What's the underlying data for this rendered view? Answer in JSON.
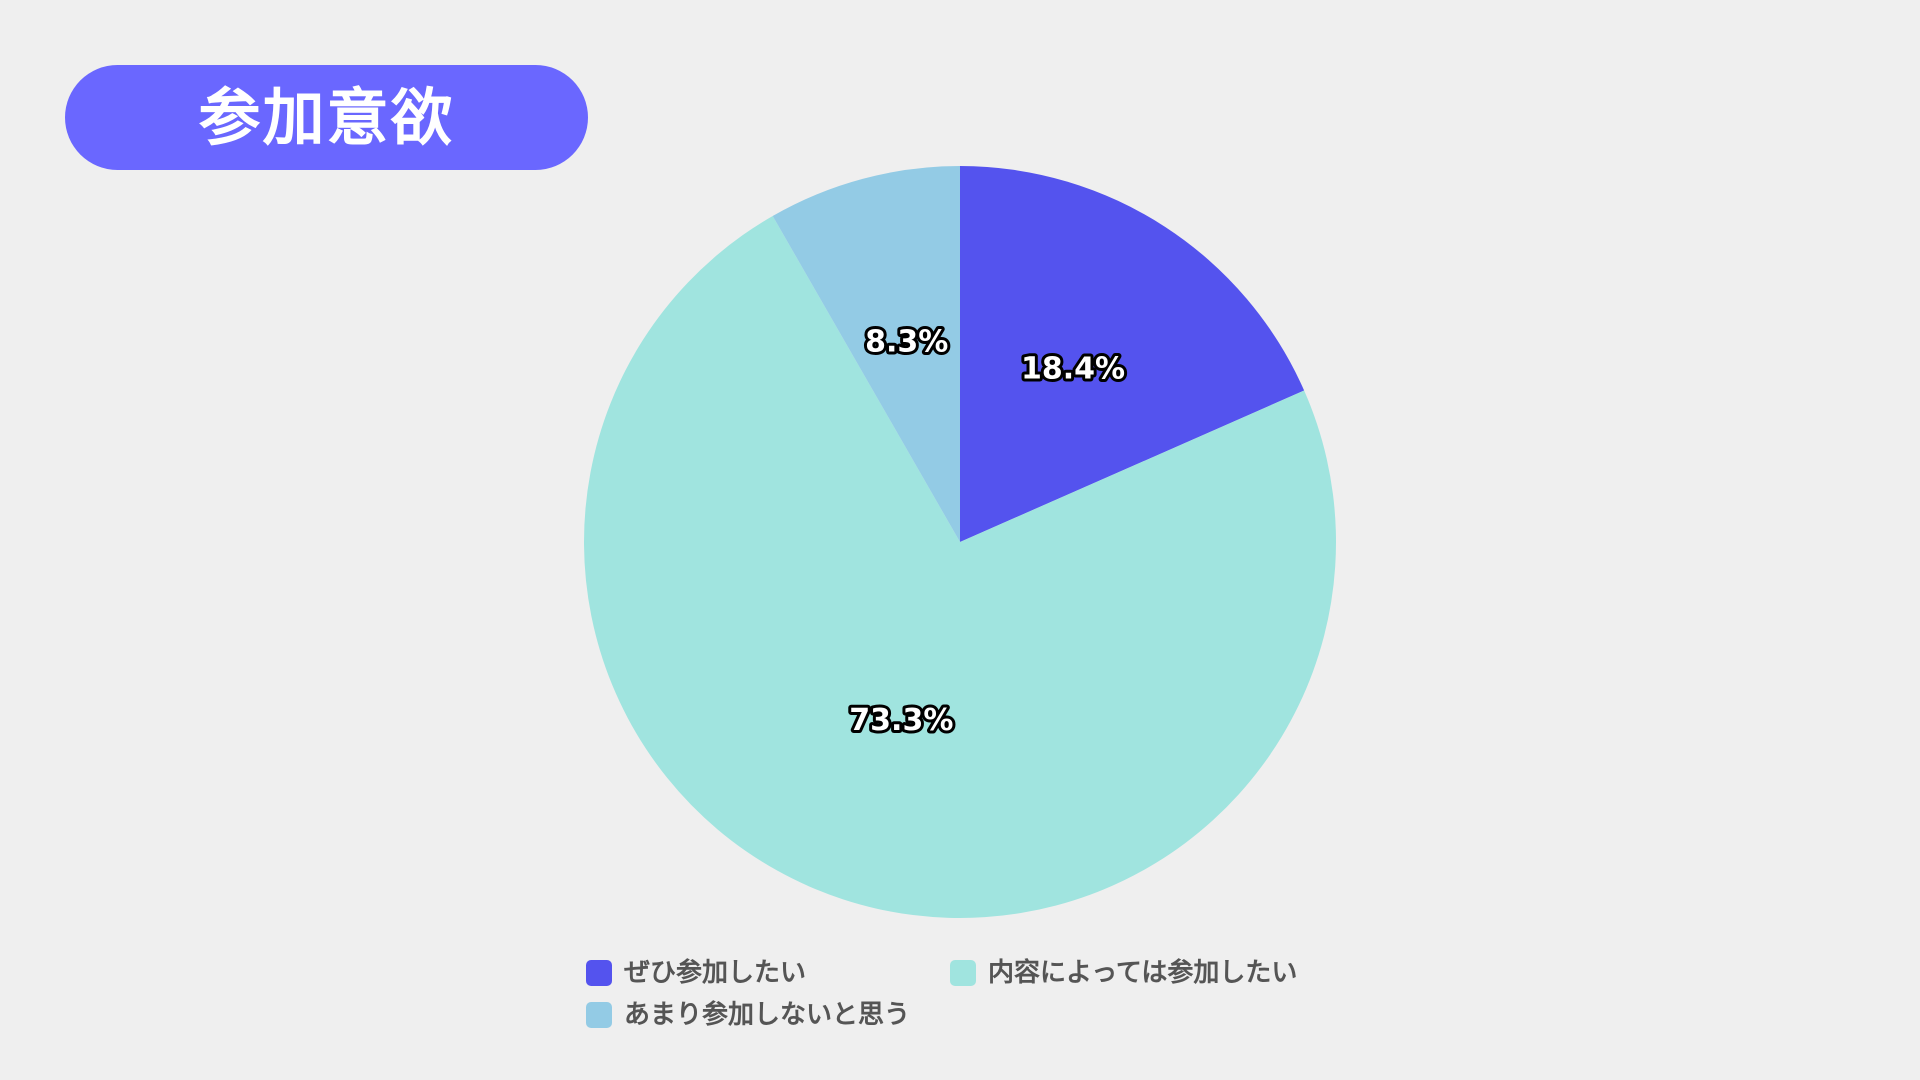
{
  "header": {
    "title": "参加意欲"
  },
  "colors": {
    "title_bg": "#6a67ff",
    "background": "#efefef"
  },
  "chart_data": {
    "type": "pie",
    "title": "参加意欲",
    "start": "12 o'clock",
    "direction": "clockwise",
    "slices": [
      {
        "label": "ぜひ参加したい",
        "value": 18.4,
        "value_label": "18.4%",
        "color": "#5453ee"
      },
      {
        "label": "内容によっては参加したい",
        "value": 73.3,
        "value_label": "73.3%",
        "color": "#a0e4df"
      },
      {
        "label": "あまり参加しないと思う",
        "value": 8.3,
        "value_label": "8.3%",
        "color": "#93cbe5"
      }
    ],
    "legend": {
      "position": "bottom",
      "items": [
        "ぜひ参加したい",
        "内容によっては参加したい",
        "あまり参加しないと思う"
      ]
    }
  }
}
